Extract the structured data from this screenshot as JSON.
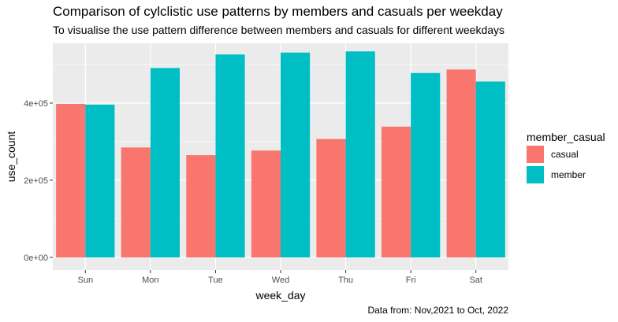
{
  "chart_data": {
    "type": "bar",
    "title": "Comparison of cylclistic use patterns by members and casuals per weekday",
    "subtitle": "To visualise the use pattern difference between members and casuals for different weekdays",
    "caption": "Data from: Nov,2021 to Oct, 2022",
    "xlabel": "week_day",
    "ylabel": "use_count",
    "categories": [
      "Sun",
      "Mon",
      "Tue",
      "Wed",
      "Thu",
      "Fri",
      "Sat"
    ],
    "series": [
      {
        "name": "casual",
        "color": "#F8766D",
        "values": [
          398000,
          285000,
          265000,
          277000,
          307000,
          339000,
          487000
        ]
      },
      {
        "name": "member",
        "color": "#00BFC4",
        "values": [
          396000,
          491000,
          526000,
          531000,
          534000,
          478000,
          456000
        ]
      }
    ],
    "yticks": [
      0,
      200000,
      400000
    ],
    "ytick_labels": [
      "0e+00",
      "2e+05",
      "4e+05"
    ],
    "ylim": [
      0,
      555000
    ],
    "legend_title": "member_casual",
    "legend_position": "right",
    "grid": true
  }
}
